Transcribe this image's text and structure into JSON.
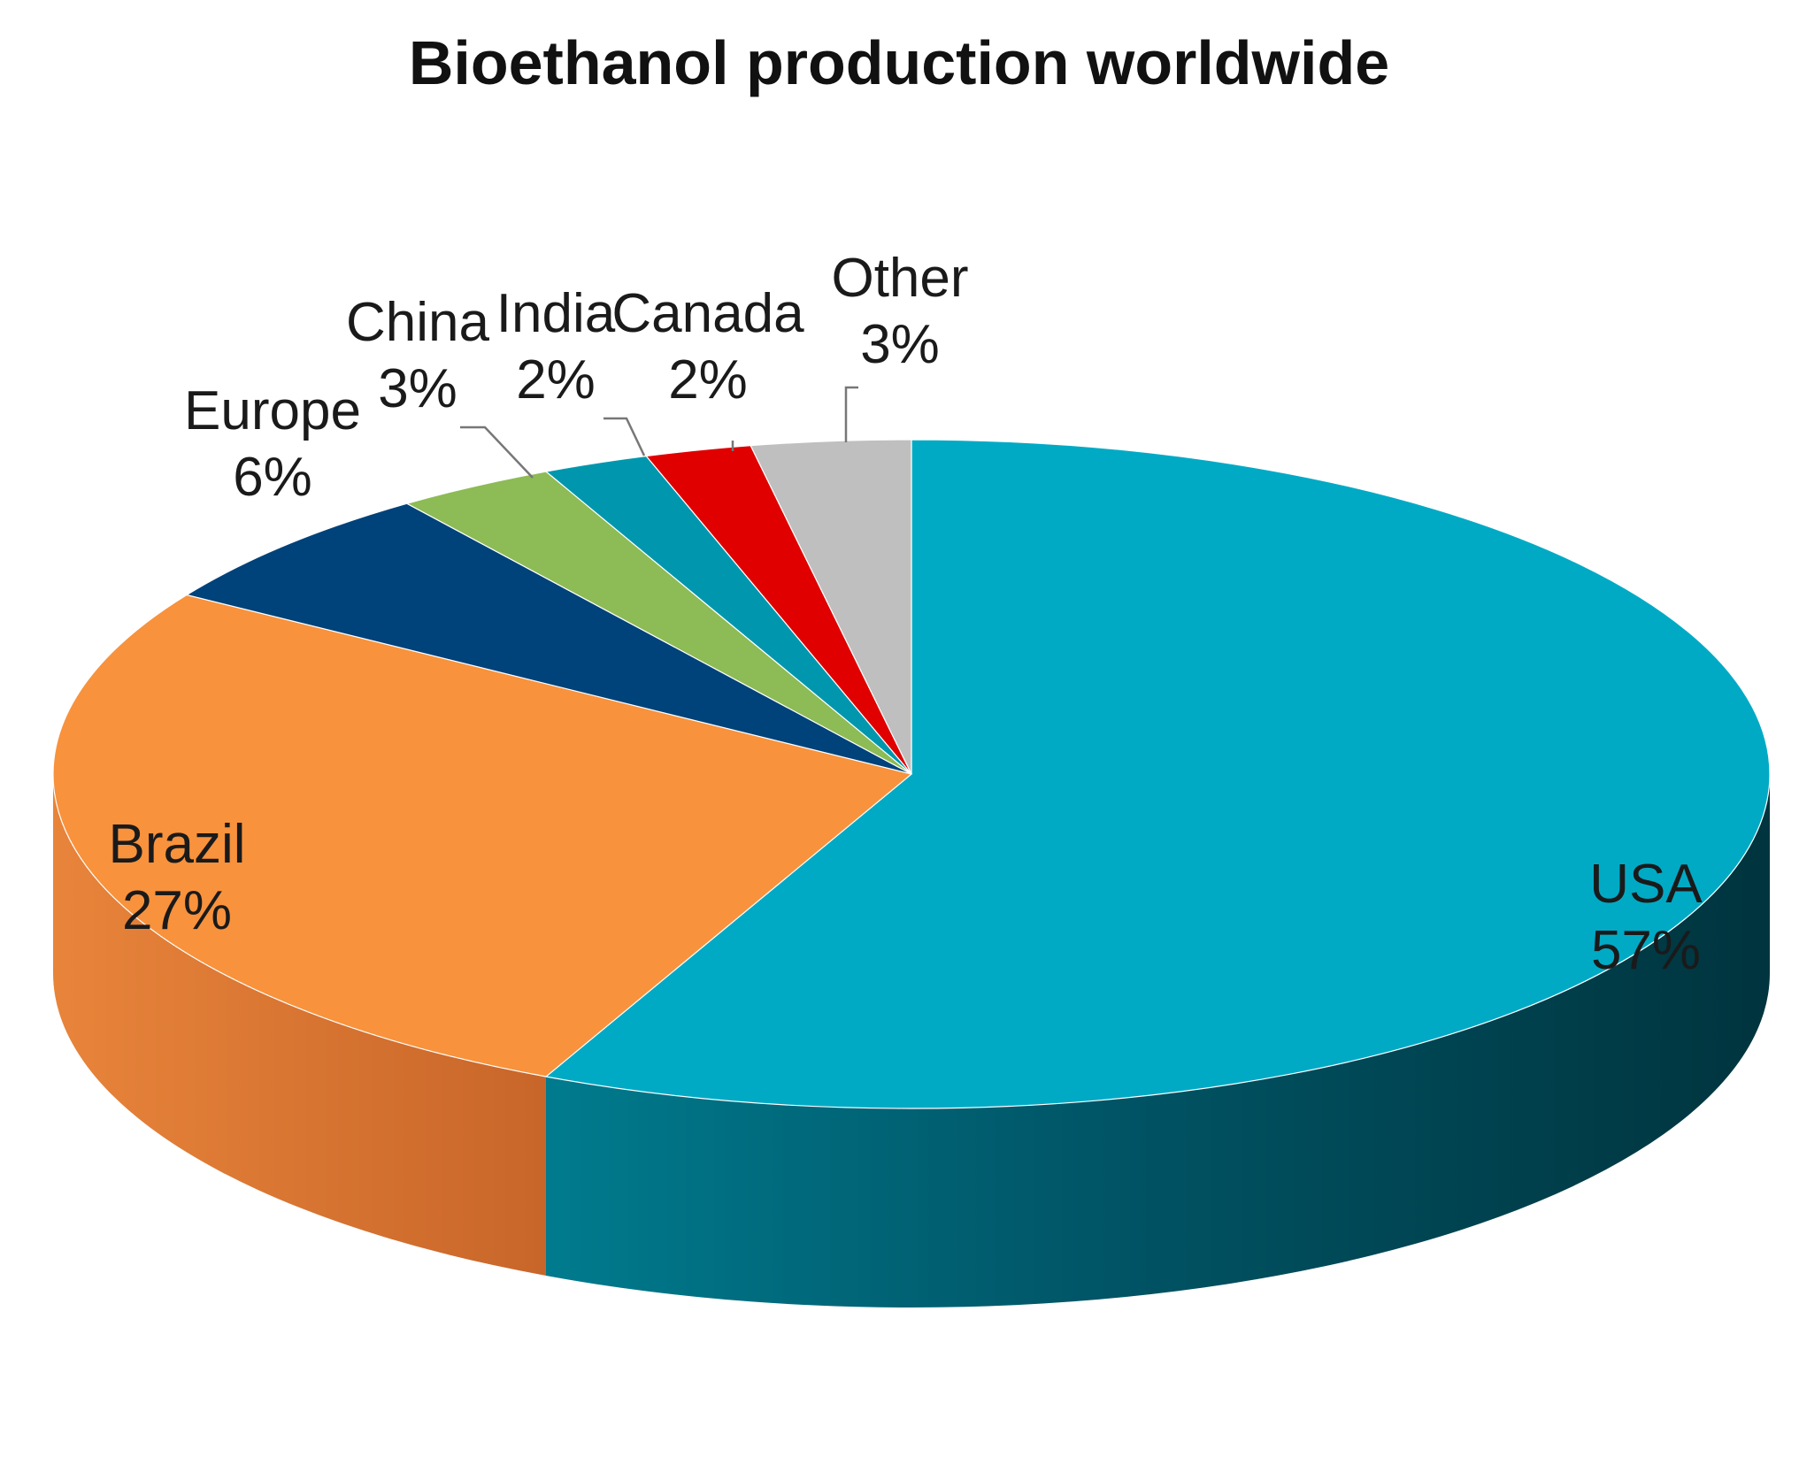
{
  "chart_data": {
    "type": "pie",
    "style": "3d",
    "title": "Bioethanol production worldwide",
    "unit": "%",
    "slices": [
      {
        "label": "USA",
        "value": 57,
        "value_label": "57%",
        "color": "#00AAC5",
        "side_color": "#005F70"
      },
      {
        "label": "Brazil",
        "value": 27,
        "value_label": "27%",
        "color": "#F8923C",
        "side_color": "#D8722A"
      },
      {
        "label": "Europe",
        "value": 6,
        "value_label": "6%",
        "color": "#00427A",
        "side_color": "#002A50"
      },
      {
        "label": "China",
        "value": 3,
        "value_label": "3%",
        "color": "#8DBB55",
        "side_color": "#6A9640"
      },
      {
        "label": "India",
        "value": 2,
        "value_label": "2%",
        "color": "#0097AE",
        "side_color": "#006A7A"
      },
      {
        "label": "Canada",
        "value": 2,
        "value_label": "2%",
        "color": "#E00000",
        "side_color": "#A00000"
      },
      {
        "label": "Other",
        "value": 3,
        "value_label": "3%",
        "color": "#BFBFBF",
        "side_color": "#909090"
      }
    ]
  }
}
